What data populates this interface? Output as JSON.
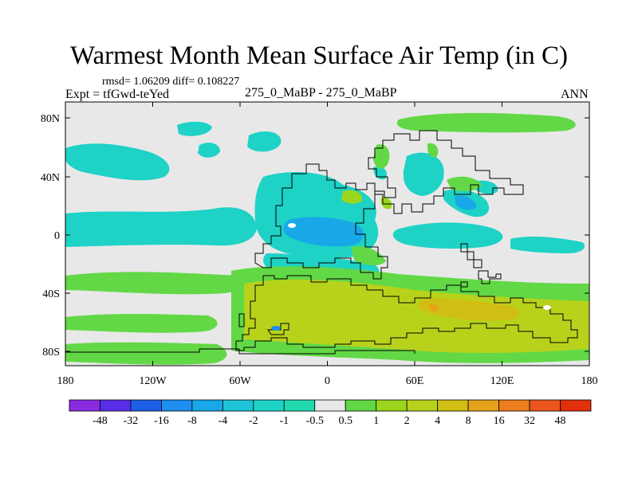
{
  "title": "Warmest Month Mean Surface Air Temp (in C)",
  "stats": "rmsd= 1.06209 diff= 0.108227",
  "expt": "Expt = tfGwd-teYed",
  "center_label": "275_0_MaBP - 275_0_MaBP",
  "season": "ANN",
  "lon_labels": [
    "180",
    "120W",
    "60W",
    "0",
    "60E",
    "120E",
    "180"
  ],
  "lat_labels": [
    "80N",
    "40N",
    "0",
    "40S",
    "80S"
  ],
  "colorbar": {
    "labels": [
      "-48",
      "-32",
      "-16",
      "-8",
      "-4",
      "-2",
      "-1",
      "-0.5",
      "0.5",
      "1",
      "2",
      "4",
      "8",
      "16",
      "32",
      "48"
    ],
    "colors": [
      "#8a2be2",
      "#5a2de6",
      "#1f5fe8",
      "#1e8ff0",
      "#18a8e8",
      "#1ec3d8",
      "#1ed2c6",
      "#22d9ae",
      "#e8e8e8",
      "#62d846",
      "#9ad61e",
      "#b8d21c",
      "#d0be14",
      "#e6a21a",
      "#ec7e1e",
      "#ec561e",
      "#e0300c"
    ]
  },
  "colors": {
    "background": "#e8e8e8",
    "coastline": "#000000"
  }
}
